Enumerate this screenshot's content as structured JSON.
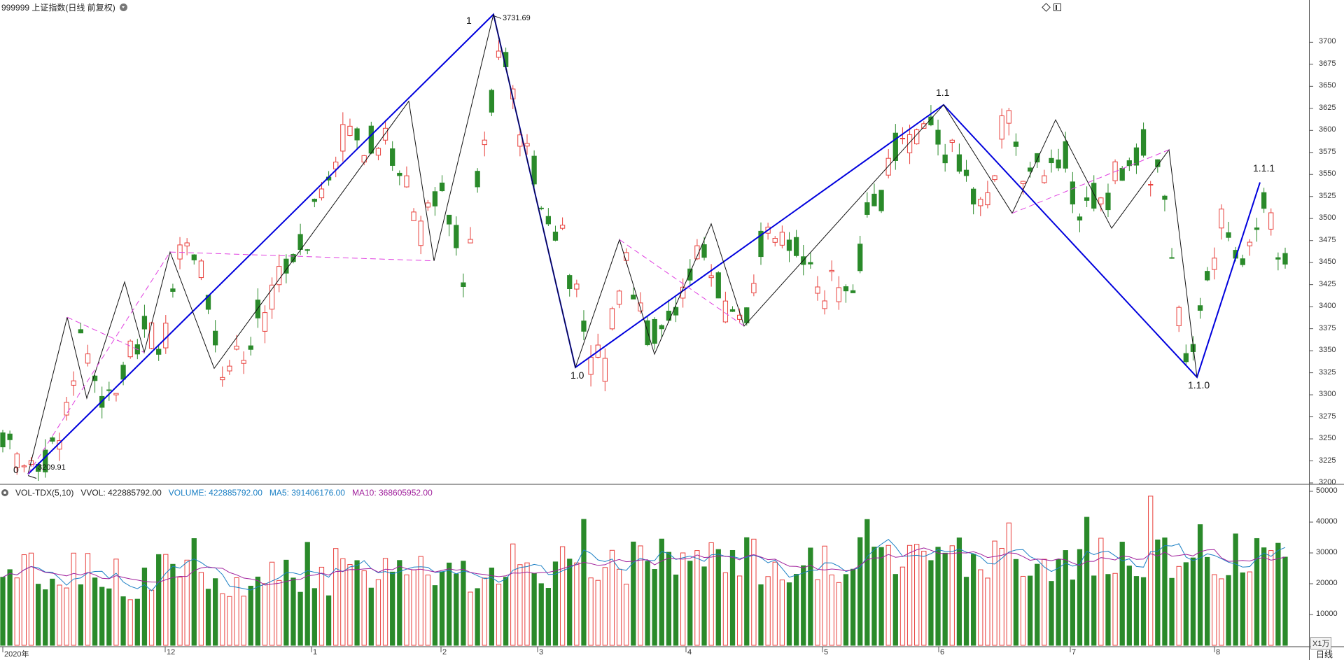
{
  "header": {
    "title": "999999 上证指数(日线 前复权)"
  },
  "price_axis": {
    "ticks": [
      "3700",
      "3675",
      "3650",
      "3625",
      "3600",
      "3575",
      "3550",
      "3525",
      "3500",
      "3475",
      "3450",
      "3425",
      "3400",
      "3375",
      "3350",
      "3325",
      "3300",
      "3275",
      "3250",
      "3225",
      "3200"
    ]
  },
  "volume_indicator": {
    "name": "VOL-TDX(5,10)",
    "vvol": "VVOL: 422885792.00",
    "volume": "VOLUME: 422885792.00",
    "ma5": "MA5: 391406176.00",
    "ma10": "MA10: 368605952.00",
    "axis_ticks": [
      "50000",
      "40000",
      "30000",
      "20000",
      "10000"
    ],
    "unit": "X1万"
  },
  "time_axis": {
    "labels": [
      "2020年",
      "12",
      "1",
      "2",
      "3",
      "4",
      "5",
      "6",
      "7",
      "8"
    ]
  },
  "period": "日线",
  "annotations": {
    "high_price": "3731.69",
    "low_price": "3209.91",
    "waves": [
      "0",
      "1",
      "1.0",
      "1.1",
      "1.1.0",
      "1.1.1"
    ]
  },
  "colors": {
    "up": "#e8413d",
    "down": "#2a8a2a",
    "wave_major": "#0000dd",
    "wave_minor": "#111111",
    "wave_dashed": "#e040e0",
    "ma5": "#1a7fc4",
    "ma10": "#a0209c"
  },
  "chart_data": {
    "type": "candlestick",
    "series_anchors": [
      [
        3245,
        3255
      ],
      [
        3283,
        3215
      ],
      [
        3281,
        3231
      ],
      [
        3335,
        3260
      ],
      [
        3386,
        3366
      ],
      [
        3326,
        3293
      ],
      [
        3342,
        3344
      ],
      [
        3431,
        3384
      ],
      [
        3361,
        3356
      ],
      [
        3462,
        3456
      ],
      [
        3417,
        3439
      ],
      [
        3371,
        3328
      ],
      [
        3378,
        3355
      ],
      [
        3438,
        3389
      ],
      [
        3445,
        3448
      ],
      [
        3483,
        3461
      ],
      [
        3571,
        3546
      ],
      [
        3604,
        3606
      ],
      [
        3543,
        3585
      ],
      [
        3627,
        3593
      ],
      [
        3583,
        3556
      ],
      [
        3492,
        3474
      ],
      [
        3524,
        3540
      ],
      [
        3459,
        3451
      ],
      [
        3521,
        3591
      ],
      [
        3731,
        3697
      ],
      [
        3640,
        3573
      ],
      [
        3533,
        3518
      ],
      [
        3573,
        3476
      ],
      [
        3431,
        3363
      ],
      [
        3412,
        3333
      ],
      [
        3468,
        3458
      ],
      [
        3418,
        3391
      ],
      [
        3356,
        3356
      ],
      [
        3385,
        3432
      ],
      [
        3491,
        3462
      ],
      [
        3440,
        3391
      ],
      [
        3395,
        3392
      ],
      [
        3446,
        3469
      ],
      [
        3476,
        3474
      ],
      [
        3497,
        3459
      ],
      [
        3432,
        3420
      ],
      [
        3394,
        3404
      ],
      [
        3477,
        3490
      ],
      [
        3519,
        3538
      ],
      [
        3496,
        3592
      ],
      [
        3622,
        3602
      ],
      [
        3576,
        3580
      ],
      [
        3606,
        3560
      ],
      [
        3509,
        3519
      ],
      [
        3588,
        3614
      ],
      [
        3580,
        3562
      ],
      [
        3511,
        3542
      ],
      [
        3530,
        3566
      ],
      [
        3579,
        3509
      ],
      [
        3488,
        3524
      ],
      [
        3496,
        3569
      ],
      [
        3502,
        3573
      ],
      [
        3571,
        3528
      ],
      [
        3382,
        3321
      ],
      [
        3409,
        3430
      ],
      [
        3466,
        3492
      ],
      [
        3473,
        3445
      ],
      [
        3528,
        3527
      ],
      [
        3514,
        3452
      ]
    ],
    "volume_range": [
      0,
      50000
    ],
    "price_range": [
      3200,
      3740
    ]
  }
}
